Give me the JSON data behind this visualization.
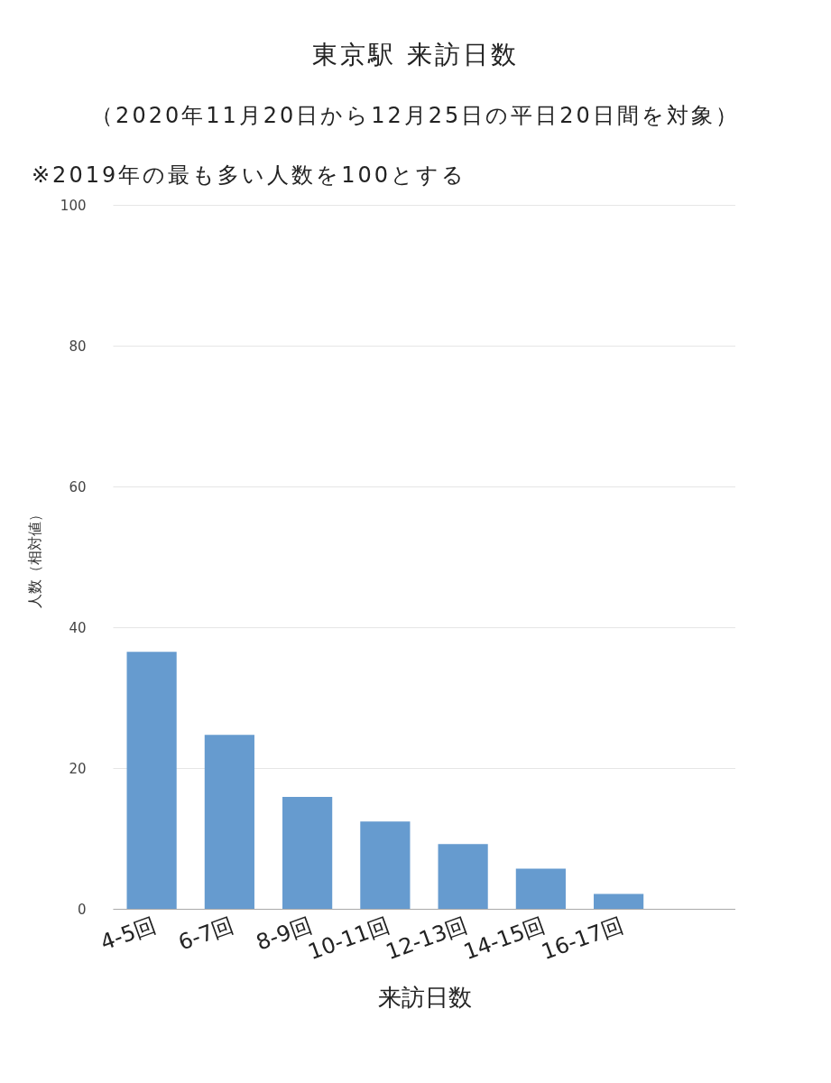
{
  "chart_data": {
    "type": "bar",
    "title": "東京駅 来訪日数",
    "subtitle": "（2020年11月20日から12月25日の平日20日間を対象）",
    "annotations": [
      "※2019年の最も多い人数を100とする"
    ],
    "xlabel": "来訪日数",
    "ylabel": "人数（相対値）",
    "categories": [
      "4-5回",
      "6-7回",
      "8-9回",
      "10-11回",
      "12-13回",
      "14-15回",
      "16-17回",
      null
    ],
    "values": [
      36.5,
      24.7,
      15.9,
      12.4,
      9.2,
      5.7,
      2.1,
      null
    ],
    "color": "#669bcf",
    "ylim": [
      0,
      100
    ],
    "yticks": [
      0,
      20,
      40,
      60,
      80,
      100
    ],
    "grid": "y"
  }
}
